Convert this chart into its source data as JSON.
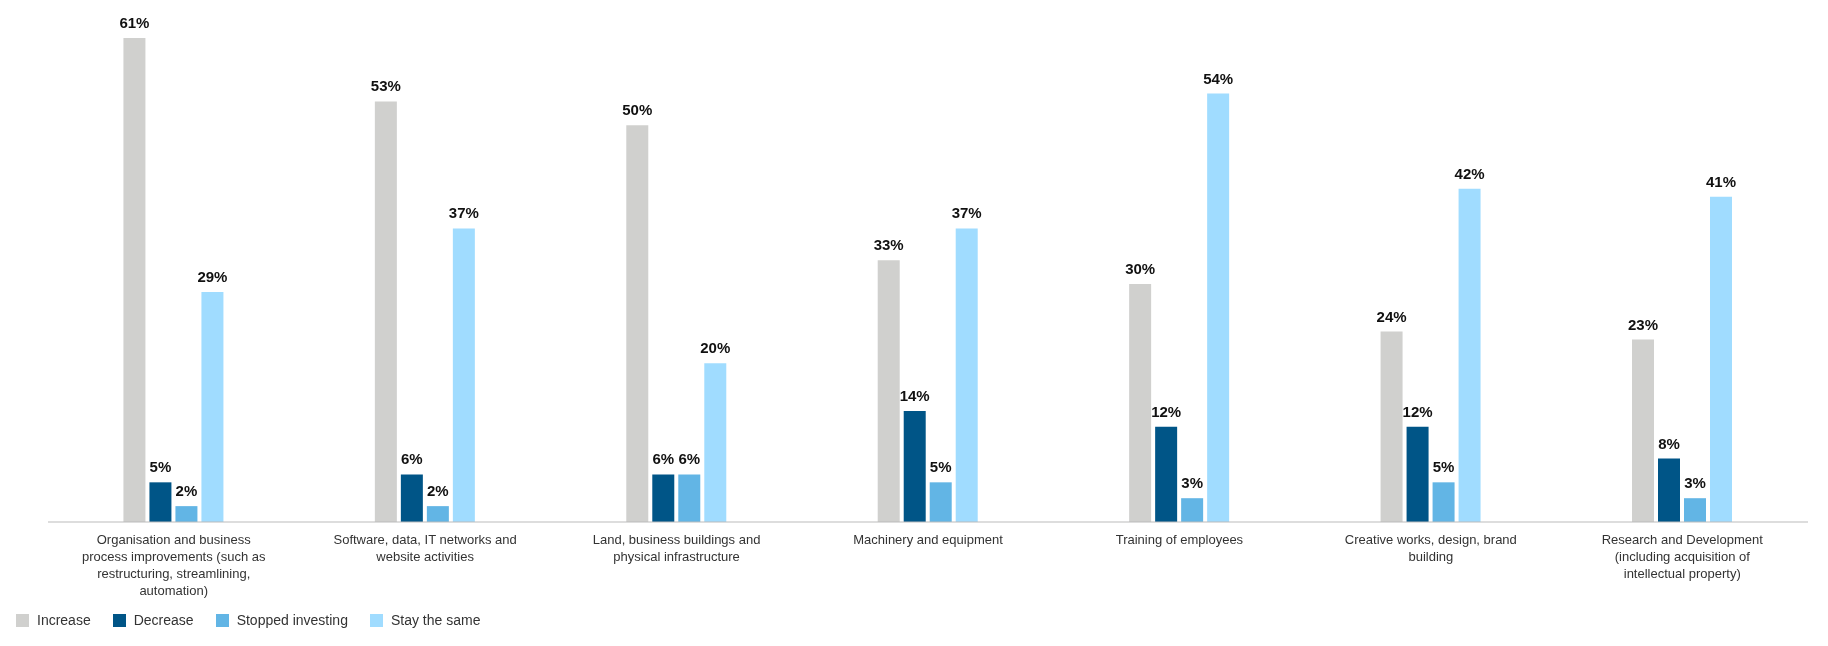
{
  "chart_data": {
    "type": "bar",
    "categories": [
      "Organisation and business process improvements (such as restructuring, streamlining, automation)",
      "Software, data, IT networks and website activities",
      "Land, business buildings and physical infrastructure",
      "Machinery and equipment",
      "Training of employees",
      "Creative works, design, brand building",
      "Research and Development (including acquisition of intellectual property)"
    ],
    "series": [
      {
        "name": "Increase",
        "color": "#d0d0ce",
        "values": [
          61,
          53,
          50,
          33,
          30,
          24,
          23
        ],
        "value_labels": [
          "61%",
          "53%",
          "50%",
          "33%",
          "30%",
          "24%",
          "23%"
        ]
      },
      {
        "name": "Decrease",
        "color": "#005587",
        "values": [
          5,
          6,
          6,
          14,
          12,
          12,
          8
        ],
        "value_labels": [
          "5%",
          "6%",
          "6%",
          "14%",
          "12%",
          "12%",
          "8%"
        ]
      },
      {
        "name": "Stopped investing",
        "color": "#62b5e5",
        "values": [
          2,
          2,
          6,
          5,
          3,
          5,
          3
        ],
        "value_labels": [
          "2%",
          "2%",
          "6%",
          "5%",
          "3%",
          "5%",
          "3%"
        ]
      },
      {
        "name": "Stay the same",
        "color": "#a0dcff",
        "values": [
          29,
          37,
          20,
          37,
          54,
          42,
          41
        ],
        "value_labels": [
          "29%",
          "37%",
          "20%",
          "37%",
          "54%",
          "42%",
          "41%"
        ]
      }
    ],
    "legend": "bottom left",
    "grid": false
  }
}
